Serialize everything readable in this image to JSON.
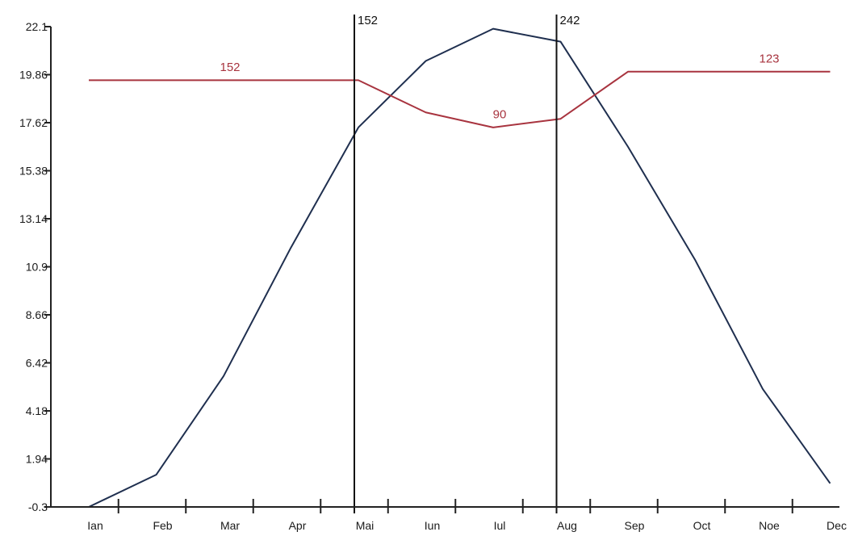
{
  "chart_data": {
    "type": "line",
    "title": "",
    "xlabel": "",
    "ylabel": "",
    "categories": [
      "Ian",
      "Feb",
      "Mar",
      "Apr",
      "Mai",
      "Iun",
      "Iul",
      "Aug",
      "Sep",
      "Oct",
      "Noe",
      "Dec"
    ],
    "y_ticks": [
      "22.1",
      "19.86",
      "17.62",
      "15.38",
      "13.14",
      "10.9",
      "8.66",
      "6.42",
      "4.18",
      "1.94",
      "-0.3"
    ],
    "ylim": [
      -0.3,
      22.1
    ],
    "grid": false,
    "legend": "none",
    "series": [
      {
        "color": "#1f2f4f",
        "values": [
          -0.3,
          1.2,
          5.8,
          11.8,
          17.4,
          20.5,
          22.0,
          21.4,
          16.5,
          11.2,
          5.2,
          0.8
        ]
      },
      {
        "color": "#a8343f",
        "values": [
          19.6,
          19.6,
          19.6,
          19.6,
          19.6,
          18.1,
          17.4,
          17.8,
          20.0,
          20.0,
          20.0,
          20.0
        ]
      }
    ],
    "vertical_lines": [
      {
        "x": 4.0,
        "label": "152"
      },
      {
        "x": 7.0,
        "label": "242"
      }
    ],
    "annotations": [
      {
        "x": 2.0,
        "y": 19.8,
        "text": "152",
        "color": "#a8343f"
      },
      {
        "x": 6.0,
        "y": 17.6,
        "text": "90",
        "color": "#a8343f"
      },
      {
        "x": 10.0,
        "y": 20.2,
        "text": "123",
        "color": "#a8343f"
      }
    ]
  }
}
